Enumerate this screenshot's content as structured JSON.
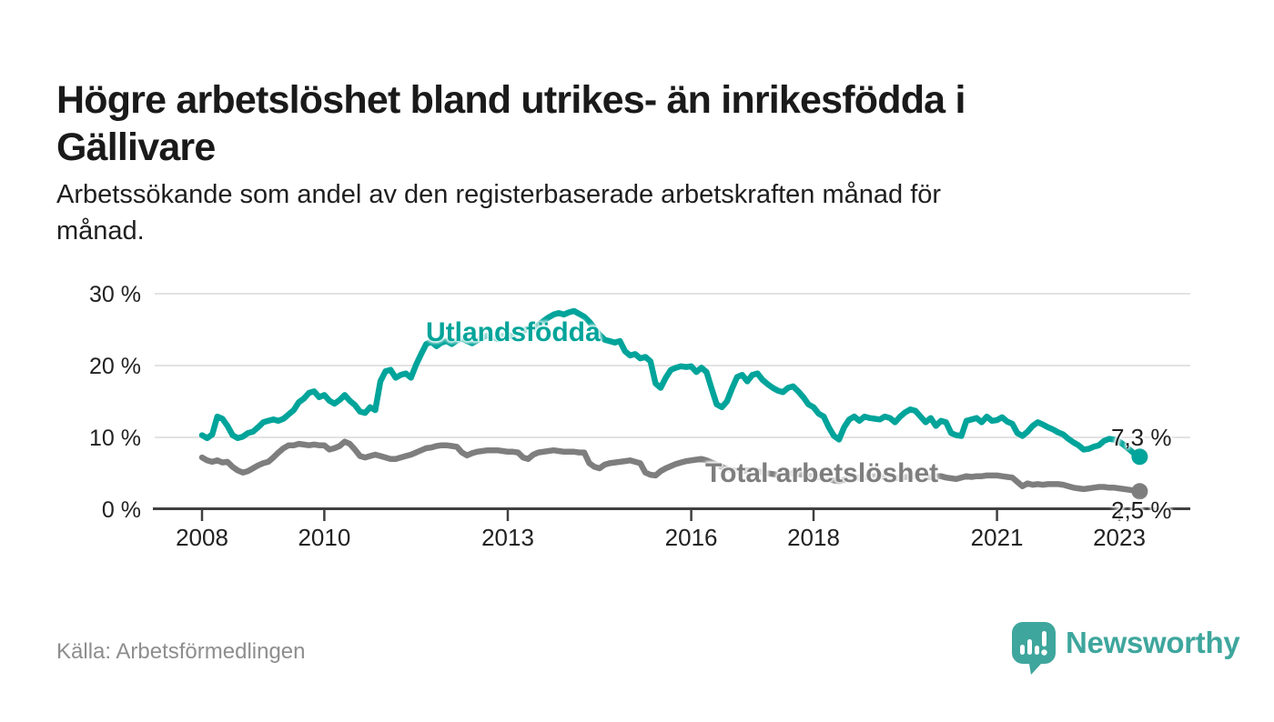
{
  "header": {
    "title": "Högre arbetslöshet bland utrikes- än inrikesfödda i\nGällivare",
    "subtitle": "Arbetssökande som andel av den registerbaserade arbetskraften månad för\nmånad."
  },
  "footer": {
    "source": "Källa: Arbetsförmedlingen",
    "brand": "Newsworthy"
  },
  "colors": {
    "accent_teal": "#00a49a",
    "series_gray": "#7e7e7e",
    "brand_teal": "#3ea69d",
    "grid": "#dadada",
    "axis": "#404040",
    "text_dark": "#1a1a1a",
    "source_gray": "#8e8e8e"
  },
  "chart_data": {
    "type": "line",
    "title": "Högre arbetslöshet bland utrikes- än inrikesfödda i Gällivare",
    "xlabel": "",
    "ylabel": "Arbetssökande som andel av den registerbaserade arbetskraften",
    "frequency": "monthly",
    "start_month": "2008-01",
    "end_month": "2023-05",
    "ylim": [
      0,
      30
    ],
    "grid": "horizontal",
    "legend_position": "inline-annotations",
    "y_ticks": [
      {
        "value": 0,
        "label": "0 %"
      },
      {
        "value": 10,
        "label": "10 %"
      },
      {
        "value": 20,
        "label": "20 %"
      },
      {
        "value": 30,
        "label": "30 %"
      }
    ],
    "x_ticks": [
      {
        "year": 2008,
        "label": "2008"
      },
      {
        "year": 2010,
        "label": "2010"
      },
      {
        "year": 2013,
        "label": "2013"
      },
      {
        "year": 2016,
        "label": "2016"
      },
      {
        "year": 2018,
        "label": "2018"
      },
      {
        "year": 2021,
        "label": "2021"
      },
      {
        "year": 2023,
        "label": "2023"
      }
    ],
    "series": [
      {
        "id": "utlandsfodda",
        "name": "Utlandsfödda",
        "label_text": "Utlandsfödda",
        "end_label": "7,3 %",
        "end_value": 7.3,
        "color": "#00a49a",
        "values": [
          10.3,
          9.9,
          10.4,
          12.9,
          12.6,
          11.6,
          10.3,
          9.9,
          10.1,
          10.6,
          10.8,
          11.4,
          12.1,
          12.3,
          12.5,
          12.3,
          12.6,
          13.2,
          13.8,
          14.9,
          15.4,
          16.2,
          16.4,
          15.6,
          15.9,
          15.1,
          14.7,
          15.2,
          15.9,
          15.1,
          14.5,
          13.6,
          13.4,
          14.2,
          13.8,
          17.8,
          19.2,
          19.4,
          18.3,
          18.7,
          18.9,
          18.3,
          20.1,
          21.6,
          23.0,
          23.3,
          22.7,
          23.2,
          23.4,
          23.0,
          23.5,
          23.8,
          23.4,
          23.1,
          23.5,
          23.9,
          24.2,
          24.0,
          23.7,
          24.1,
          24.3,
          24.0,
          24.4,
          24.8,
          25.2,
          25.0,
          25.6,
          26.2,
          26.7,
          27.1,
          27.3,
          27.1,
          27.4,
          27.6,
          27.2,
          26.8,
          26.1,
          25.2,
          24.3,
          23.6,
          23.4,
          23.2,
          23.4,
          22.0,
          21.4,
          21.6,
          21.0,
          21.2,
          20.6,
          17.5,
          16.9,
          18.3,
          19.4,
          19.7,
          19.9,
          19.8,
          19.9,
          19.1,
          19.7,
          19.1,
          16.8,
          14.6,
          14.2,
          15.0,
          16.8,
          18.4,
          18.7,
          17.8,
          18.7,
          18.9,
          18.0,
          17.4,
          16.9,
          16.5,
          16.3,
          16.9,
          17.1,
          16.4,
          15.6,
          14.6,
          14.2,
          13.3,
          12.9,
          11.4,
          10.2,
          9.7,
          11.4,
          12.5,
          12.9,
          12.3,
          12.9,
          12.7,
          12.6,
          12.5,
          12.9,
          12.7,
          12.1,
          12.9,
          13.5,
          13.9,
          13.7,
          12.9,
          12.1,
          12.7,
          11.6,
          12.3,
          12.1,
          10.6,
          10.3,
          10.2,
          12.3,
          12.5,
          12.7,
          12.1,
          12.9,
          12.3,
          12.4,
          12.8,
          12.2,
          11.9,
          10.6,
          10.2,
          10.8,
          11.6,
          12.1,
          11.8,
          11.4,
          11.1,
          10.7,
          10.4,
          9.8,
          9.3,
          8.9,
          8.3,
          8.4,
          8.7,
          8.9,
          9.5,
          9.8,
          9.7,
          9.4,
          8.9,
          8.3,
          7.7,
          7.3
        ]
      },
      {
        "id": "total",
        "name": "Total arbetslöshet",
        "label_text": "Total arbetslöshet",
        "end_label": "2,5 %",
        "end_value": 2.5,
        "color": "#7e7e7e",
        "values": [
          7.2,
          6.8,
          6.6,
          6.8,
          6.5,
          6.6,
          5.9,
          5.4,
          5.1,
          5.3,
          5.7,
          6.1,
          6.4,
          6.6,
          7.2,
          7.9,
          8.5,
          8.9,
          8.9,
          9.1,
          9.0,
          8.9,
          9.0,
          8.9,
          8.9,
          8.3,
          8.5,
          8.8,
          9.4,
          9.1,
          8.3,
          7.4,
          7.2,
          7.4,
          7.6,
          7.4,
          7.2,
          7.0,
          7.0,
          7.2,
          7.4,
          7.6,
          7.9,
          8.2,
          8.5,
          8.6,
          8.8,
          8.9,
          8.9,
          8.8,
          8.7,
          7.9,
          7.5,
          7.8,
          8.0,
          8.1,
          8.2,
          8.2,
          8.2,
          8.1,
          8.0,
          8.0,
          7.9,
          7.2,
          7.0,
          7.6,
          7.9,
          8.0,
          8.1,
          8.2,
          8.1,
          8.0,
          8.0,
          8.0,
          7.9,
          7.9,
          6.4,
          5.9,
          5.7,
          6.2,
          6.4,
          6.5,
          6.6,
          6.7,
          6.8,
          6.6,
          6.4,
          5.1,
          4.8,
          4.7,
          5.3,
          5.7,
          6.0,
          6.3,
          6.5,
          6.7,
          6.8,
          6.9,
          7.0,
          6.8,
          6.5,
          6.2,
          5.9,
          5.6,
          5.4,
          5.3,
          5.3,
          5.4,
          5.4,
          5.3,
          5.1,
          5.0,
          4.9,
          4.8,
          4.8,
          4.9,
          5.0,
          4.9,
          4.8,
          4.7,
          4.6,
          4.5,
          4.4,
          4.2,
          4.0,
          3.9,
          4.1,
          4.3,
          4.4,
          4.4,
          4.5,
          4.5,
          4.6,
          4.6,
          4.5,
          4.4,
          4.3,
          4.4,
          4.5,
          4.6,
          4.6,
          4.5,
          4.4,
          4.5,
          4.6,
          4.6,
          4.4,
          4.3,
          4.2,
          4.4,
          4.6,
          4.5,
          4.6,
          4.6,
          4.7,
          4.7,
          4.7,
          4.6,
          4.5,
          4.4,
          3.8,
          3.2,
          3.6,
          3.4,
          3.5,
          3.4,
          3.5,
          3.5,
          3.5,
          3.4,
          3.2,
          3.0,
          2.9,
          2.8,
          2.9,
          3.0,
          3.1,
          3.1,
          3.0,
          3.0,
          2.9,
          2.8,
          2.7,
          2.6,
          2.5
        ]
      }
    ]
  }
}
